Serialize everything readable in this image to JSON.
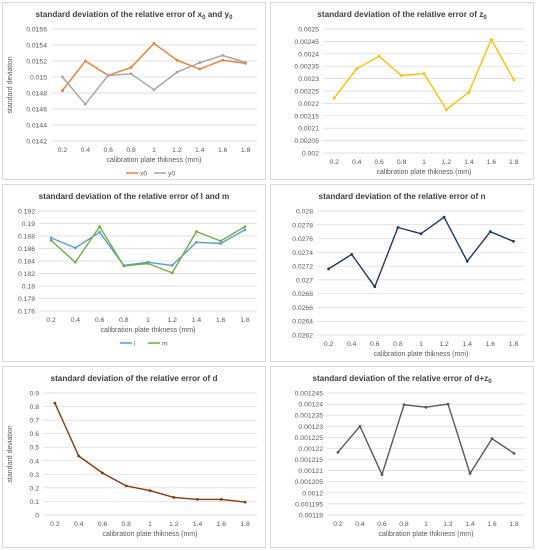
{
  "xlabel": "calibration plate thikness (mm)",
  "chart_data": [
    {
      "type": "line",
      "title_parts": [
        "standard deviation of the relative error of  x",
        "0",
        " and y",
        "0"
      ],
      "ylabel": "standard deviation",
      "categories": [
        "0.2",
        "0.4",
        "0.6",
        "0.8",
        "1",
        "1.2",
        "1.4",
        "1.6",
        "1.8"
      ],
      "ylim": [
        0.0142,
        0.0156
      ],
      "yticks": [
        "0.0142",
        "0.0144",
        "0.0146",
        "0.0148",
        "0.015",
        "0.0152",
        "0.0154",
        "0.0156"
      ],
      "tick_values": [
        0.0142,
        0.0144,
        0.0146,
        0.0148,
        0.015,
        0.0152,
        0.0154,
        0.0156
      ],
      "legend": "bottom",
      "series": [
        {
          "name": "x0",
          "color": "#ed7d31",
          "values": [
            0.01483,
            0.0152,
            0.01502,
            0.01512,
            0.01542,
            0.01521,
            0.0151,
            0.01521,
            0.01517
          ]
        },
        {
          "name": "y0",
          "color": "#a5a5a5",
          "values": [
            0.015,
            0.01466,
            0.01502,
            0.01504,
            0.01484,
            0.01506,
            0.01518,
            0.01527,
            0.01518
          ]
        }
      ]
    },
    {
      "type": "line",
      "title_parts": [
        "standard deviation of the relative error of z",
        "0",
        "",
        ""
      ],
      "ylabel": "",
      "categories": [
        "0.2",
        "0.4",
        "0.6",
        "0.8",
        "1",
        "1.2",
        "1.4",
        "1.6",
        "1.8"
      ],
      "ylim": [
        0.002,
        0.0025
      ],
      "yticks": [
        "0.002",
        "0.00205",
        "0.0021",
        "0.00215",
        "0.0022",
        "0.00225",
        "0.0023",
        "0.00235",
        "0.0024",
        "0.00245",
        "0.0025"
      ],
      "tick_values": [
        0.002,
        0.00205,
        0.0021,
        0.00215,
        0.0022,
        0.00225,
        0.0023,
        0.00235,
        0.0024,
        0.00245,
        0.0025
      ],
      "legend": "none",
      "series": [
        {
          "name": "",
          "color": "#ffc000",
          "values": [
            0.002222,
            0.00234,
            0.00239,
            0.002312,
            0.00232,
            0.002175,
            0.002245,
            0.002458,
            0.002295
          ]
        }
      ]
    },
    {
      "type": "line",
      "title_parts": [
        "standard deviation of the relative error of l and m",
        "",
        "",
        ""
      ],
      "ylabel": "",
      "categories": [
        "0.2",
        "0.4",
        "0.6",
        "0.8",
        "1",
        "1.2",
        "1.4",
        "1.6",
        "1.8"
      ],
      "ylim": [
        0.176,
        0.192
      ],
      "yticks": [
        "0.176",
        "0.178",
        "0.18",
        "0.182",
        "0.184",
        "0.186",
        "0.188",
        "0.19",
        "0.192"
      ],
      "tick_values": [
        0.176,
        0.178,
        0.18,
        0.182,
        0.184,
        0.186,
        0.188,
        0.19,
        0.192
      ],
      "legend": "bottom",
      "series": [
        {
          "name": "l",
          "color": "#5b9bd5",
          "values": [
            0.1877,
            0.1861,
            0.1886,
            0.1833,
            0.1838,
            0.1833,
            0.187,
            0.1868,
            0.189
          ]
        },
        {
          "name": "m",
          "color": "#70ad47",
          "values": [
            0.1873,
            0.1838,
            0.1895,
            0.1832,
            0.1836,
            0.1821,
            0.1887,
            0.1872,
            0.1895
          ]
        }
      ]
    },
    {
      "type": "line",
      "title_parts": [
        "standard deviation of the relative error of n",
        "",
        "",
        ""
      ],
      "ylabel": "",
      "categories": [
        "0.2",
        "0.4",
        "0.6",
        "0.8",
        "1",
        "1.2",
        "1.4",
        "1.6",
        "1.8"
      ],
      "ylim": [
        0.0262,
        0.028
      ],
      "yticks": [
        "0.0262",
        "0.0264",
        "0.0266",
        "0.0268",
        "0.027",
        "0.0272",
        "0.0274",
        "0.0276",
        "0.0278",
        "0.028"
      ],
      "tick_values": [
        0.0262,
        0.0264,
        0.0266,
        0.0268,
        0.027,
        0.0272,
        0.0274,
        0.0276,
        0.0278,
        0.028
      ],
      "legend": "none",
      "series": [
        {
          "name": "",
          "color": "#1f3864",
          "values": [
            0.02716,
            0.02737,
            0.0269,
            0.02776,
            0.02767,
            0.02791,
            0.02727,
            0.0277,
            0.02756
          ]
        }
      ]
    },
    {
      "type": "line",
      "title_parts": [
        "standard deviation of the relative error of d",
        "",
        "",
        ""
      ],
      "ylabel": "standard deviation",
      "categories": [
        "0.2",
        "0.4",
        "0.6",
        "0.8",
        "1",
        "1.2",
        "1.4",
        "1.6",
        "1.8"
      ],
      "ylim": [
        0,
        0.9
      ],
      "yticks": [
        "0",
        "0.1",
        "0.2",
        "0.3",
        "0.4",
        "0.5",
        "0.6",
        "0.7",
        "0.8",
        "0.9"
      ],
      "tick_values": [
        0,
        0.1,
        0.2,
        0.3,
        0.4,
        0.5,
        0.6,
        0.7,
        0.8,
        0.9
      ],
      "legend": "none",
      "series": [
        {
          "name": "",
          "color": "#843c0c",
          "values": [
            0.825,
            0.435,
            0.31,
            0.215,
            0.18,
            0.13,
            0.115,
            0.115,
            0.095
          ]
        }
      ]
    },
    {
      "type": "line",
      "title_parts": [
        "standard deviation of the relative error of d+z",
        "0",
        "",
        ""
      ],
      "ylabel": "",
      "categories": [
        "0.2",
        "0.4",
        "0.6",
        "0.8",
        "1",
        "1.2",
        "1.4",
        "1.6",
        "1.8"
      ],
      "ylim": [
        0.00119,
        0.001245
      ],
      "yticks": [
        "0.00119",
        "0.001195",
        "0.0012",
        "0.001205",
        "0.00121",
        "0.001215",
        "0.00122",
        "0.001225",
        "0.00123",
        "0.001235",
        "0.00124",
        "0.001245"
      ],
      "tick_values": [
        0.00119,
        0.001195,
        0.0012,
        0.001205,
        0.00121,
        0.001215,
        0.00122,
        0.001225,
        0.00123,
        0.001235,
        0.00124,
        0.001245
      ],
      "legend": "none",
      "series": [
        {
          "name": "",
          "color": "#595959",
          "values": [
            0.0012183,
            0.00123,
            0.0012082,
            0.0012397,
            0.0012386,
            0.00124,
            0.0012087,
            0.0012244,
            0.0012178
          ]
        }
      ]
    }
  ]
}
